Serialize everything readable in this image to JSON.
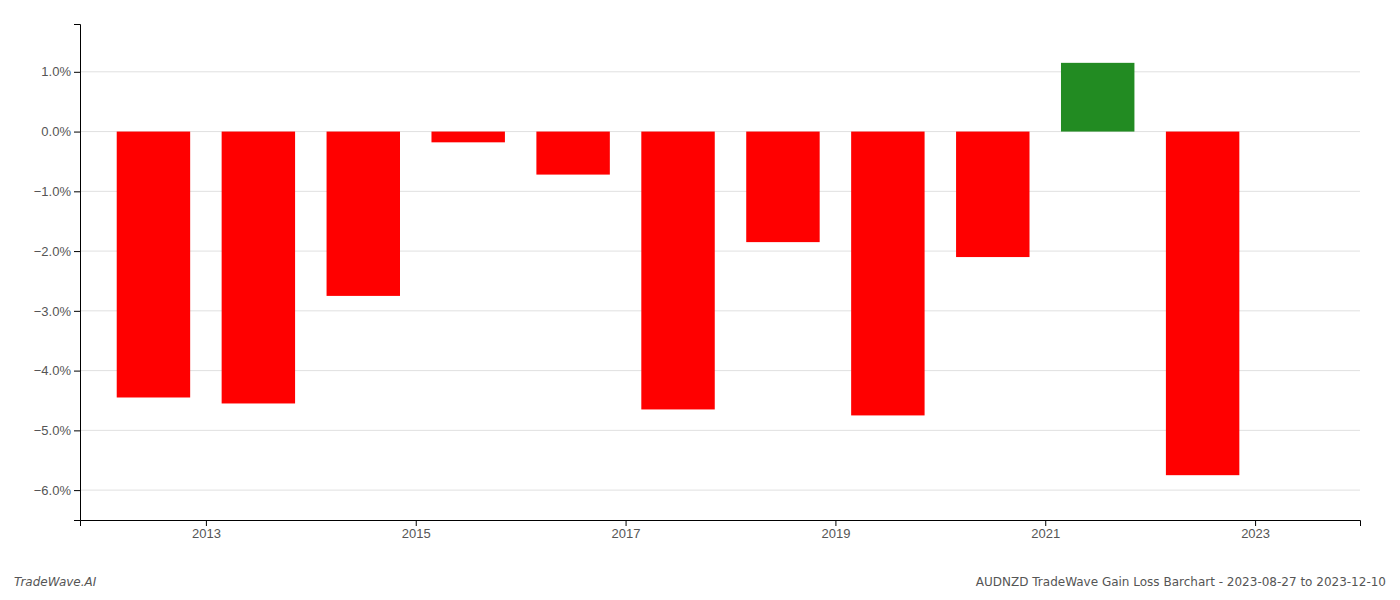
{
  "chart_data": {
    "type": "bar",
    "x": [
      2012.5,
      2013.5,
      2014.5,
      2015.5,
      2016.5,
      2017.5,
      2018.5,
      2019.5,
      2020.5,
      2021.5,
      2022.5
    ],
    "values": [
      -4.45,
      -4.55,
      -2.75,
      -0.18,
      -0.72,
      -4.65,
      -1.85,
      -4.75,
      -2.1,
      1.15,
      -5.75
    ],
    "colors": [
      "#ff0000",
      "#ff0000",
      "#ff0000",
      "#ff0000",
      "#ff0000",
      "#ff0000",
      "#ff0000",
      "#ff0000",
      "#ff0000",
      "#228B22",
      "#ff0000"
    ],
    "xlim": [
      2011.8,
      2024.0
    ],
    "xticks": [
      2013,
      2015,
      2017,
      2019,
      2021,
      2023
    ],
    "ylim": [
      -6.5,
      1.8
    ],
    "yticks": [
      {
        "value": -6.0,
        "label": "−6.0%"
      },
      {
        "value": -5.0,
        "label": "−5.0%"
      },
      {
        "value": -4.0,
        "label": "−4.0%"
      },
      {
        "value": -3.0,
        "label": "−3.0%"
      },
      {
        "value": -2.0,
        "label": "−2.0%"
      },
      {
        "value": -1.0,
        "label": "−1.0%"
      },
      {
        "value": 0.0,
        "label": "0.0%"
      },
      {
        "value": 1.0,
        "label": "1.0%"
      }
    ],
    "grid": true,
    "annotations": [
      "TradeWave.AI",
      "AUDNZD TradeWave Gain Loss Barchart - 2023-08-27 to 2023-12-10"
    ]
  }
}
